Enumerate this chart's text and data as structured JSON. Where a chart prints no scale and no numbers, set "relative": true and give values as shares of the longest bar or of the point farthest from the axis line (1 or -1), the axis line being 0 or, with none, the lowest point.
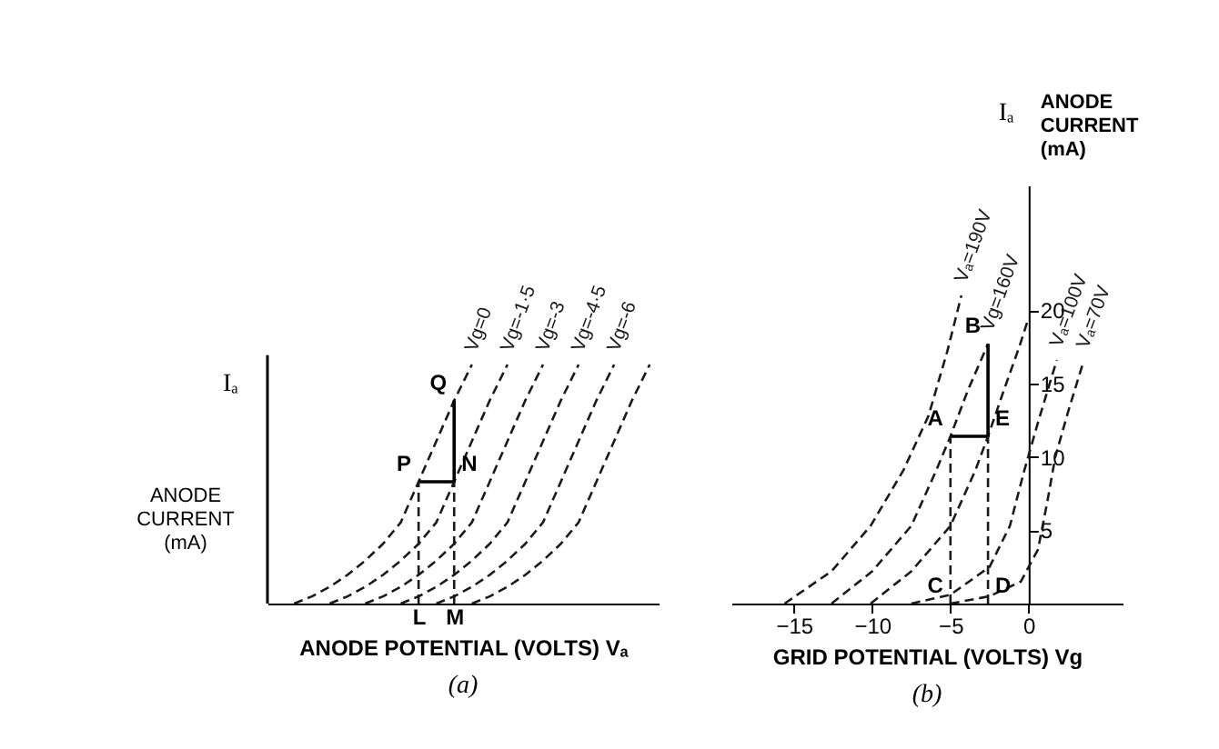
{
  "chart_data": [
    {
      "type": "line",
      "title": "(a)",
      "xlabel": "ANODE POTENTIAL (VOLTS) Vₐ",
      "ylabel": "ANODE CURRENT (mA)",
      "relative": true,
      "line_style": "dashed",
      "marker": "none",
      "categories": [
        null,
        null,
        null,
        null,
        null,
        null,
        null,
        null,
        "L",
        null,
        "M",
        null,
        null,
        null,
        null,
        null,
        null,
        null,
        null,
        null,
        null,
        null
      ],
      "series": [
        {
          "name": "Vg=0",
          "color": "#1a1a1a",
          "values": [
            null,
            0,
            0.03,
            0.07,
            0.12,
            0.18,
            0.25,
            0.34,
            0.51,
            0.68,
            0.85,
            1.0,
            null,
            null,
            null,
            null,
            null,
            null,
            null,
            null,
            null,
            null
          ]
        },
        {
          "name": "Vg=-1·5",
          "color": "#1a1a1a",
          "values": [
            null,
            null,
            null,
            0,
            0.03,
            0.07,
            0.12,
            0.18,
            0.25,
            0.34,
            0.51,
            0.68,
            0.85,
            1.0,
            null,
            null,
            null,
            null,
            null,
            null,
            null,
            null
          ]
        },
        {
          "name": "Vg=-3",
          "color": "#1a1a1a",
          "values": [
            null,
            null,
            null,
            null,
            null,
            0,
            0.03,
            0.07,
            0.12,
            0.18,
            0.25,
            0.34,
            0.51,
            0.68,
            0.85,
            1.0,
            null,
            null,
            null,
            null,
            null,
            null
          ]
        },
        {
          "name": "Vg=-4·5",
          "color": "#1a1a1a",
          "values": [
            null,
            null,
            null,
            null,
            null,
            null,
            null,
            0,
            0.03,
            0.07,
            0.12,
            0.18,
            0.25,
            0.34,
            0.51,
            0.68,
            0.85,
            1.0,
            null,
            null,
            null,
            null
          ]
        },
        {
          "name": "Vg=-6",
          "color": "#1a1a1a",
          "values": [
            null,
            null,
            null,
            null,
            null,
            null,
            null,
            null,
            null,
            0,
            0.03,
            0.07,
            0.12,
            0.18,
            0.25,
            0.34,
            0.51,
            0.68,
            0.85,
            1.0,
            null,
            null
          ]
        },
        {
          "color": "#1a1a1a",
          "values": [
            null,
            null,
            null,
            null,
            null,
            null,
            null,
            null,
            null,
            null,
            null,
            0,
            0.03,
            0.07,
            0.12,
            0.18,
            0.25,
            0.34,
            0.51,
            0.68,
            0.85,
            1.0
          ]
        },
        {
          "color": "#000000",
          "line_style": "solid",
          "x": [
            "L",
            "M",
            "M"
          ],
          "values": [
            0.51,
            0.51,
            0.85
          ]
        },
        {
          "color": "#1a1a1a",
          "x": [
            "L",
            "L"
          ],
          "values": [
            0,
            0.51
          ]
        },
        {
          "color": "#1a1a1a",
          "x": [
            "M",
            "M"
          ],
          "values": [
            0,
            0.51
          ]
        }
      ],
      "annotations": [
        {
          "text": "P",
          "x": "L",
          "y": 0.51
        },
        {
          "text": "N",
          "x": "M",
          "y": 0.51
        },
        {
          "text": "Q",
          "x": "M",
          "y": 0.85
        },
        "Iₐ"
      ]
    },
    {
      "type": "line",
      "title": "(b)",
      "xlabel": "GRID POTENTIAL (VOLTS) Vg",
      "ylabel": "ANODE CURRENT (mA)",
      "xlim": [
        -19,
        6
      ],
      "xticks": [
        -15,
        -10,
        -5,
        0
      ],
      "ylim": [
        0,
        28.5
      ],
      "yticks": [
        5,
        10,
        15,
        20
      ],
      "line_style": "dashed",
      "marker": "none",
      "series": [
        {
          "name": "Vₐ=190V",
          "color": "#1a1a1a",
          "x": [
            -15.6,
            -12.6,
            -10.1,
            -8,
            -6.4,
            -5.2,
            -4.3
          ],
          "values": [
            0,
            2.2,
            5.3,
            9.1,
            12.8,
            17.2,
            21
          ]
        },
        {
          "name": "Vg=160V",
          "color": "#1a1a1a",
          "x": [
            -12.6,
            -10,
            -7.5,
            -5.9,
            -5,
            -3.9,
            -2.6
          ],
          "values": [
            0,
            2.2,
            5.3,
            9.1,
            11.4,
            14.5,
            17.7
          ]
        },
        {
          "color": "#1a1a1a",
          "x": [
            -10.1,
            -7.5,
            -5,
            -3.4,
            -2.6,
            -1.6,
            -0.6,
            0
          ],
          "values": [
            0,
            2.2,
            5.3,
            9.1,
            11.4,
            14.5,
            17.5,
            19.5
          ]
        },
        {
          "name": "Vₐ=100V",
          "color": "#1a1a1a",
          "x": [
            -7.5,
            -5,
            -2.5,
            -1.2,
            -0.3,
            0.5,
            1.2,
            1.8
          ],
          "values": [
            0,
            0.6,
            2.5,
            5.3,
            9,
            12,
            14.5,
            16.6
          ]
        },
        {
          "name": "Vₐ=70V",
          "color": "#1a1a1a",
          "x": [
            -5,
            -2.5,
            -0.5,
            0.6,
            1.2,
            1.7,
            2.5,
            3.5
          ],
          "values": [
            0,
            0.5,
            1.5,
            3.7,
            7,
            10,
            13,
            16.5
          ]
        },
        {
          "color": "#000000",
          "line_style": "solid",
          "x": [
            -5,
            -2.6,
            -2.6
          ],
          "values": [
            11.4,
            11.4,
            17.7
          ]
        },
        {
          "color": "#1a1a1a",
          "x": [
            -5,
            -5
          ],
          "values": [
            0,
            11.4
          ]
        },
        {
          "color": "#1a1a1a",
          "x": [
            -2.6,
            -2.6
          ],
          "values": [
            0,
            11.4
          ]
        }
      ],
      "annotations": [
        {
          "text": "A",
          "x": -5,
          "y": 11.4
        },
        {
          "text": "E",
          "x": -2.6,
          "y": 11.4
        },
        {
          "text": "B",
          "x": -2.6,
          "y": 17.7
        },
        {
          "text": "C",
          "x": -5,
          "y": 0
        },
        {
          "text": "D",
          "x": -2.6,
          "y": 0
        },
        "Iₐ"
      ]
    }
  ]
}
